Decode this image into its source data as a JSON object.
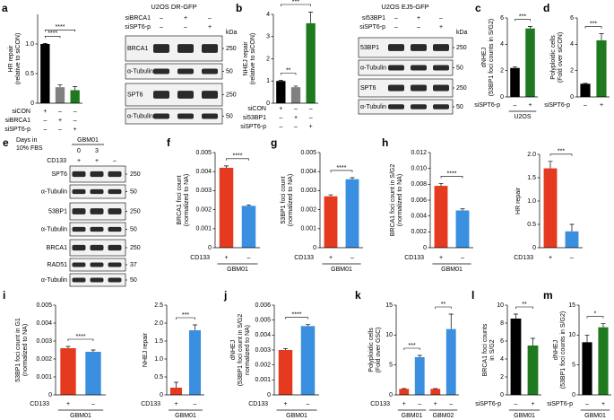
{
  "chart_data": [
    {
      "label": "a",
      "type": "bar",
      "ylabel": [
        "HR repair",
        "(relative to siCON)"
      ],
      "values": [
        1.0,
        0.27,
        0.22
      ],
      "errors": [
        0.01,
        0.04,
        0.06
      ],
      "colors": [
        "#000000",
        "#808080",
        "#1f7a1f"
      ],
      "ylim": [
        0,
        1.5
      ],
      "yticks": [
        0,
        0.5,
        {
          "value": 1,
          "label": "1.0"
        }
      ],
      "significance": [
        "****",
        "****"
      ],
      "conditions": [
        {
          "name": "siCON",
          "marks": [
            "+",
            "–",
            "–"
          ]
        },
        {
          "name": "siBRCA1",
          "marks": [
            "–",
            "+",
            "–"
          ]
        },
        {
          "name": "siSPT6-p",
          "marks": [
            "–",
            "–",
            "+"
          ]
        }
      ]
    },
    {
      "label": "b",
      "type": "bar",
      "ylabel": [
        "NHEJ repair",
        "(relative to siCON)"
      ],
      "values": [
        1.0,
        0.72,
        3.6
      ],
      "errors": [
        0.03,
        0.05,
        0.5
      ],
      "colors": [
        "#000000",
        "#808080",
        "#1f7a1f"
      ],
      "ylim": [
        0,
        4
      ],
      "yticks": [
        0,
        1,
        2,
        3,
        4
      ],
      "significance": [
        "**",
        "***"
      ],
      "conditions": [
        {
          "name": "siCON",
          "marks": [
            "+",
            "–",
            "–"
          ]
        },
        {
          "name": "si53BP1",
          "marks": [
            "–",
            "+",
            "–"
          ]
        },
        {
          "name": "siSPT6-p",
          "marks": [
            "–",
            "–",
            "+"
          ]
        }
      ]
    },
    {
      "label": "c",
      "type": "bar",
      "ylabel": [
        "dNHEJ",
        "(53BP1 foci counts in S/G2)"
      ],
      "values": [
        2.2,
        5.2
      ],
      "errors": [
        0.08,
        0.15
      ],
      "colors": [
        "#000000",
        "#1f7a1f"
      ],
      "ylim": [
        0,
        6
      ],
      "yticks": [
        0,
        2,
        4,
        6
      ],
      "significance": [
        "***"
      ],
      "conditions": [
        {
          "name": "siSPT6-p",
          "marks": [
            "–",
            "+"
          ]
        }
      ],
      "groups": [
        "U2OS"
      ]
    },
    {
      "label": "d",
      "type": "bar",
      "ylabel": [
        "Polyploidic cells",
        "(Fold over siCON)"
      ],
      "values": [
        1,
        4.3
      ],
      "errors": [
        0.03,
        0.5
      ],
      "colors": [
        "#000000",
        "#1f7a1f"
      ],
      "ylim": [
        0,
        6
      ],
      "yticks": [
        0,
        2,
        4,
        6
      ],
      "significance": [
        "***"
      ],
      "conditions": [
        {
          "name": "siSPT6-p",
          "marks": [
            "–",
            "+"
          ]
        }
      ]
    },
    {
      "label": "f",
      "type": "bar",
      "ylabel": [
        "BRCA1 foci count",
        "(normalized to NA)"
      ],
      "values": [
        0.0042,
        0.0022
      ],
      "errors": [
        0.0001,
        5e-05
      ],
      "colors": [
        "#e53a1f",
        "#3b8fe0"
      ],
      "ylim": [
        0,
        0.005
      ],
      "yticks": [
        0,
        0.001,
        0.002,
        0.003,
        0.004,
        0.005
      ],
      "significance": [
        "****"
      ],
      "conditions": [
        {
          "name": "CD133",
          "marks": [
            "+",
            "–"
          ]
        }
      ],
      "groups": [
        "GBM01"
      ]
    },
    {
      "label": "g",
      "type": "bar",
      "ylabel": [
        "53BP1 foci count",
        "(normalized to NA)"
      ],
      "values": [
        0.0027,
        0.0036
      ],
      "errors": [
        8e-05,
        8e-05
      ],
      "colors": [
        "#e53a1f",
        "#3b8fe0"
      ],
      "ylim": [
        0,
        0.005
      ],
      "yticks": [
        0,
        0.001,
        0.002,
        0.003,
        0.004,
        0.005
      ],
      "significance": [
        "****"
      ],
      "conditions": [
        {
          "name": "CD133",
          "marks": [
            "+",
            "–"
          ]
        }
      ],
      "groups": [
        "GBM01"
      ]
    },
    {
      "label": "h",
      "type": "bar",
      "ylabel": [
        "BRCA1 foci count in S/G2",
        "(normalized to NA)"
      ],
      "values": [
        0.0078,
        0.0047
      ],
      "errors": [
        0.0003,
        0.0002
      ],
      "colors": [
        "#e53a1f",
        "#3b8fe0"
      ],
      "ylim": [
        0,
        0.012
      ],
      "yticks": [
        0,
        0.002,
        0.004,
        0.006,
        0.008,
        {
          "value": 0.01,
          "label": "0.010"
        },
        0.012
      ],
      "significance": [
        "****"
      ],
      "conditions": [
        {
          "name": "CD133",
          "marks": [
            "+",
            "–"
          ]
        }
      ],
      "groups": [
        "GBM01"
      ]
    },
    {
      "type": "bar",
      "ylabel": [
        "HR repair"
      ],
      "values": [
        1.7,
        0.35
      ],
      "errors": [
        0.15,
        0.15
      ],
      "colors": [
        "#e53a1f",
        "#3b8fe0"
      ],
      "ylim": [
        0,
        2
      ],
      "yticks": [
        0,
        0.5,
        {
          "value": 1,
          "label": "1.0"
        },
        1.5,
        {
          "value": 2,
          "label": "2.0"
        }
      ],
      "significance": [
        "***"
      ],
      "conditions": [
        {
          "name": "CD133",
          "marks": [
            "+",
            "–"
          ]
        }
      ]
    },
    {
      "label": "i",
      "type": "bar",
      "ylabel": [
        "53BP1 foci count in G1",
        "(normalized to NA)"
      ],
      "values": [
        0.0026,
        0.0024
      ],
      "errors": [
        0.0001,
        0.0001
      ],
      "colors": [
        "#e53a1f",
        "#3b8fe0"
      ],
      "ylim": [
        0,
        0.005
      ],
      "yticks": [
        0,
        0.001,
        0.002,
        0.003,
        0.004,
        0.005
      ],
      "significance": [
        "****"
      ],
      "conditions": [
        {
          "name": "CD133",
          "marks": [
            "+",
            "–"
          ]
        }
      ],
      "groups": [
        "GBM01"
      ]
    },
    {
      "type": "bar",
      "ylabel": [
        "NHEJ repair"
      ],
      "values": [
        0.2,
        1.8
      ],
      "errors": [
        0.15,
        0.15
      ],
      "colors": [
        "#e53a1f",
        "#3b8fe0"
      ],
      "ylim": [
        0,
        2.5
      ],
      "yticks": [
        0,
        0.5,
        {
          "value": 1,
          "label": "1.0"
        },
        1.5,
        {
          "value": 2,
          "label": "2.0"
        },
        2.5
      ],
      "significance": [
        "***"
      ],
      "conditions": [
        {
          "name": "CD133",
          "marks": [
            "+",
            "–"
          ]
        }
      ],
      "groups": [
        "GBM01"
      ]
    },
    {
      "label": "j",
      "type": "bar",
      "ylabel": [
        "dNHEJ",
        "(53BP1 foci count in S/G2",
        "normalized to NA)"
      ],
      "values": [
        0.003,
        0.0046
      ],
      "errors": [
        0.0001,
        0.0001
      ],
      "colors": [
        "#e53a1f",
        "#3b8fe0"
      ],
      "ylim": [
        0,
        0.006
      ],
      "yticks": [
        0,
        0.001,
        0.002,
        0.003,
        0.004,
        0.005,
        0.006
      ],
      "significance": [
        "****"
      ],
      "conditions": [
        {
          "name": "CD133",
          "marks": [
            "+",
            "–"
          ]
        }
      ],
      "groups": [
        "GBM01"
      ]
    },
    {
      "label": "k",
      "type": "bar",
      "ylabel": [
        "Polyploidic cells",
        "(Fold over GSC)"
      ],
      "values": [
        1,
        6.3,
        1,
        11
      ],
      "errors": [
        0.05,
        0.3,
        0.05,
        2.5
      ],
      "colors": [
        "#e53a1f",
        "#3b8fe0",
        "#e53a1f",
        "#3b8fe0"
      ],
      "ylim": [
        0,
        15
      ],
      "yticks": [
        0,
        5,
        10,
        15
      ],
      "significance": [
        "***",
        "**"
      ],
      "conditions": [
        {
          "name": "CD133",
          "marks": [
            "+",
            "–",
            "+",
            "–"
          ]
        }
      ],
      "groups": [
        "GBM01",
        "GBM02"
      ]
    },
    {
      "label": "l",
      "type": "bar",
      "ylabel": [
        "BRCA1 foci counts",
        "in S/G2"
      ],
      "values": [
        8.5,
        5.5
      ],
      "errors": [
        0.5,
        0.8
      ],
      "colors": [
        "#000000",
        "#1f7a1f"
      ],
      "ylim": [
        0,
        10
      ],
      "yticks": [
        0,
        2,
        4,
        6,
        8,
        10
      ],
      "significance": [
        "**"
      ],
      "conditions": [
        {
          "name": "siSPT6-p",
          "marks": [
            "–",
            "+"
          ]
        }
      ],
      "groups": [
        "GBM01"
      ]
    },
    {
      "label": "m",
      "type": "bar",
      "ylabel": [
        "dNHEJ",
        "(53BP1 foci counts in S/G2)"
      ],
      "values": [
        8.8,
        11.3
      ],
      "errors": [
        1.2,
        0.6
      ],
      "colors": [
        "#000000",
        "#1f7a1f"
      ],
      "ylim": [
        0,
        15
      ],
      "yticks": [
        0,
        5,
        10,
        15
      ],
      "significance": [
        "*"
      ],
      "conditions": [
        {
          "name": "siSPT6-p",
          "marks": [
            "–",
            "+"
          ]
        }
      ],
      "groups": [
        "GBM01"
      ]
    }
  ],
  "blots": [
    {
      "title": "U2OS DR-GFP",
      "unit": "kDa",
      "conditions": [
        {
          "name": "siBRCA1",
          "marks": [
            "–",
            "+",
            "–"
          ]
        },
        {
          "name": "siSPT6-p",
          "marks": [
            "–",
            "–",
            "+"
          ]
        }
      ],
      "bands": [
        {
          "name": "BRCA1",
          "kda": 250
        },
        {
          "name": "α-Tubulin",
          "kda": 50
        },
        {
          "name": "SPT6",
          "kda": 250
        },
        {
          "name": "α-Tubulin",
          "kda": 50
        }
      ]
    },
    {
      "title": "U2OS EJ5-GFP",
      "unit": "kDa",
      "conditions": [
        {
          "name": "si53BP1",
          "marks": [
            "–",
            "+",
            "–"
          ]
        },
        {
          "name": "siSPT6-p",
          "marks": [
            "–",
            "–",
            "+"
          ]
        }
      ],
      "bands": [
        {
          "name": "53BP1",
          "kda": 250
        },
        {
          "name": "α-Tubulin",
          "kda": 50
        },
        {
          "name": "SPT6",
          "kda": 250
        },
        {
          "name": "α-Tubulin",
          "kda": 50
        }
      ]
    },
    {
      "label": "e",
      "header": [
        "Days in",
        "10% FBS"
      ],
      "cell_line": "GBM01",
      "days": [
        0,
        3
      ],
      "conditions": [
        {
          "name": "CD133",
          "marks": [
            "+",
            "+",
            "–"
          ]
        }
      ],
      "bands": [
        {
          "name": "SPT6",
          "kda": 250
        },
        {
          "name": "α-Tubulin",
          "kda": 50
        },
        {
          "name": "53BP1",
          "kda": 250
        },
        {
          "name": "α-Tubulin",
          "kda": 50
        },
        {
          "name": "BRCA1",
          "kda": 250
        },
        {
          "name": "RAD51",
          "kda": 37
        },
        {
          "name": "α-Tubulin",
          "kda": 50
        }
      ]
    }
  ]
}
